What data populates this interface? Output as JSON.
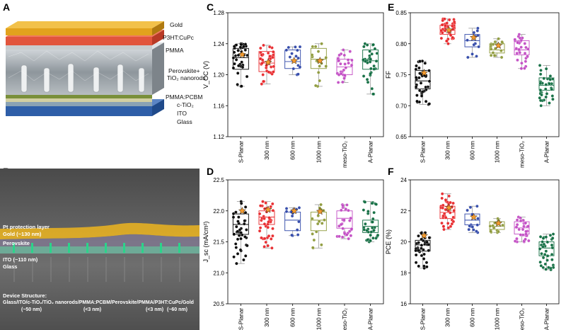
{
  "panels": {
    "A": "A",
    "B": "B",
    "C": "C",
    "D": "D",
    "E": "E",
    "F": "F"
  },
  "panelA": {
    "layers": [
      "Gold",
      "P3HT:CuPc",
      "PMMA",
      "Perovskite+",
      "TiO₂ nanorods",
      "PMMA:PCBM",
      "c-TiO₂",
      "ITO",
      "Glass"
    ]
  },
  "panelB": {
    "labels": {
      "pt": "Pt protection layer",
      "gold": "Gold (~130 nm)",
      "perovskite": "Perovskite",
      "ito": "ITO (~110 nm)",
      "glass": "Glass",
      "structure_title": "Device Structure:",
      "structure": "Glass/ITO/c-TiO₂/TiO₂ nanorods/PMMA:PCBM/Perovskite/PMMA/P3HT:CuPc/Gold",
      "t1": "(~50 nm)",
      "t2": "(<3 nm)",
      "t3": "(<3 nm)",
      "t4": "(~60 nm)"
    }
  },
  "colors": {
    "S-Planar": "#000000",
    "300 nm": "#e8262a",
    "600 nm": "#2e46a8",
    "1000 nm": "#8e9a3a",
    "meso-TiO2": "#c24bc4",
    "A-Planar": "#0e6b3f",
    "star": "#f39a2e",
    "box": "#9a9a9a"
  },
  "chart_data": [
    {
      "panel": "C",
      "type": "box-scatter",
      "ylabel": "V_OC (V)",
      "ylim": [
        1.12,
        1.28
      ],
      "yticks": [
        "1.12",
        "1.16",
        "1.20",
        "1.24",
        "1.28"
      ],
      "categories": [
        "S-Planar",
        "300 nm",
        "600 nm",
        "1000 nm",
        "meso-TiO₂",
        "A-Planar"
      ],
      "box": [
        {
          "min": 1.185,
          "q1": 1.207,
          "median": 1.222,
          "q3": 1.234,
          "max": 1.24,
          "n": 40,
          "star": 1.226
        },
        {
          "min": 1.188,
          "q1": 1.204,
          "median": 1.215,
          "q3": 1.23,
          "max": 1.238,
          "n": 40,
          "star": 1.216
        },
        {
          "min": 1.2,
          "q1": 1.208,
          "median": 1.217,
          "q3": 1.232,
          "max": 1.236,
          "n": 14,
          "star": 1.218
        },
        {
          "min": 1.185,
          "q1": 1.208,
          "median": 1.22,
          "q3": 1.234,
          "max": 1.24,
          "n": 16,
          "star": 1.218
        },
        {
          "min": 1.19,
          "q1": 1.2,
          "median": 1.21,
          "q3": 1.22,
          "max": 1.232,
          "n": 30,
          "star": null
        },
        {
          "min": 1.175,
          "q1": 1.207,
          "median": 1.218,
          "q3": 1.232,
          "max": 1.24,
          "n": 35,
          "star": null
        }
      ]
    },
    {
      "panel": "D",
      "type": "box-scatter",
      "ylabel": "J_sc (mA/cm²)",
      "ylim": [
        20.5,
        22.5
      ],
      "yticks": [
        "20.5",
        "21.0",
        "21.5",
        "22.0",
        "22.5"
      ],
      "categories": [
        "S-Planar",
        "300 nm",
        "600 nm",
        "1000 nm",
        "meso-TiO₂",
        "A-Planar"
      ],
      "box": [
        {
          "min": 21.15,
          "q1": 21.62,
          "median": 21.78,
          "q3": 21.95,
          "max": 22.15,
          "n": 40,
          "star": 22.0
        },
        {
          "min": 21.4,
          "q1": 21.78,
          "median": 21.9,
          "q3": 22.0,
          "max": 22.15,
          "n": 40,
          "star": 22.02
        },
        {
          "min": 21.6,
          "q1": 21.68,
          "median": 21.85,
          "q3": 21.98,
          "max": 22.05,
          "n": 14,
          "star": 22.0
        },
        {
          "min": 21.4,
          "q1": 21.68,
          "median": 21.85,
          "q3": 21.98,
          "max": 22.1,
          "n": 16,
          "star": 21.99
        },
        {
          "min": 21.55,
          "q1": 21.72,
          "median": 21.88,
          "q3": 22.0,
          "max": 22.1,
          "n": 30,
          "star": null
        },
        {
          "min": 21.5,
          "q1": 21.65,
          "median": 21.75,
          "q3": 21.85,
          "max": 22.15,
          "n": 35,
          "star": null
        }
      ]
    },
    {
      "panel": "E",
      "type": "box-scatter",
      "ylabel": "FF",
      "ylim": [
        0.65,
        0.85
      ],
      "yticks": [
        "0.65",
        "0.70",
        "0.75",
        "0.80",
        "0.85"
      ],
      "categories": [
        "S-Planar",
        "300 nm",
        "600 nm",
        "1000 nm",
        "meso-TiO₂",
        "A-Planar"
      ],
      "box": [
        {
          "min": 0.702,
          "q1": 0.727,
          "median": 0.74,
          "q3": 0.757,
          "max": 0.772,
          "n": 40,
          "star": 0.753
        },
        {
          "min": 0.8,
          "q1": 0.815,
          "median": 0.822,
          "q3": 0.83,
          "max": 0.84,
          "n": 40,
          "star": 0.822
        },
        {
          "min": 0.778,
          "q1": 0.795,
          "median": 0.805,
          "q3": 0.815,
          "max": 0.825,
          "n": 14,
          "star": 0.81
        },
        {
          "min": 0.778,
          "q1": 0.785,
          "median": 0.79,
          "q3": 0.8,
          "max": 0.808,
          "n": 16,
          "star": 0.797
        },
        {
          "min": 0.76,
          "q1": 0.782,
          "median": 0.79,
          "q3": 0.805,
          "max": 0.815,
          "n": 30,
          "star": null
        },
        {
          "min": 0.7,
          "q1": 0.725,
          "median": 0.733,
          "q3": 0.745,
          "max": 0.765,
          "n": 35,
          "star": null
        }
      ]
    },
    {
      "panel": "F",
      "type": "box-scatter",
      "ylabel": "PCE (%)",
      "ylim": [
        16,
        24
      ],
      "yticks": [
        "16",
        "18",
        "20",
        "22",
        "24"
      ],
      "categories": [
        "S-Planar",
        "300 nm",
        "600 nm",
        "1000 nm",
        "meso-TiO₂",
        "A-Planar"
      ],
      "box": [
        {
          "min": 18.3,
          "q1": 19.4,
          "median": 19.8,
          "q3": 20.1,
          "max": 20.6,
          "n": 40,
          "star": 20.4
        },
        {
          "min": 20.8,
          "q1": 21.5,
          "median": 21.9,
          "q3": 22.3,
          "max": 23.1,
          "n": 40,
          "star": 22.2
        },
        {
          "min": 20.6,
          "q1": 21.1,
          "median": 21.4,
          "q3": 21.8,
          "max": 22.3,
          "n": 14,
          "star": 21.6
        },
        {
          "min": 20.6,
          "q1": 20.8,
          "median": 21.0,
          "q3": 21.3,
          "max": 21.5,
          "n": 16,
          "star": 21.2
        },
        {
          "min": 20.0,
          "q1": 20.5,
          "median": 20.9,
          "q3": 21.3,
          "max": 21.6,
          "n": 30,
          "star": null
        },
        {
          "min": 18.2,
          "q1": 19.1,
          "median": 19.6,
          "q3": 20.0,
          "max": 20.5,
          "n": 35,
          "star": null
        }
      ]
    }
  ]
}
